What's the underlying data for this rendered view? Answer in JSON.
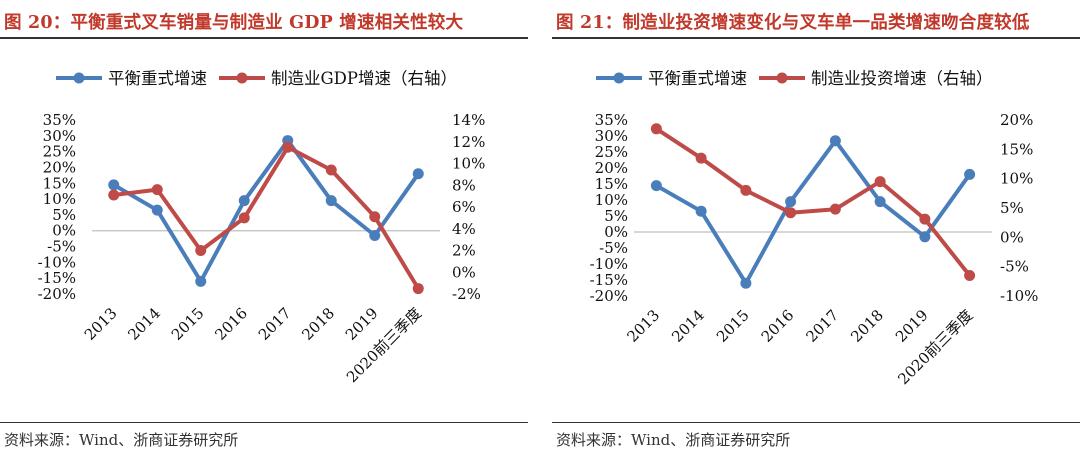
{
  "colors": {
    "blue": "#4a7ebb",
    "red": "#be4b48",
    "title_red": "#c0392b",
    "grid": "#bfbfbf"
  },
  "chart_data": [
    {
      "type": "line",
      "title": "图 20：平衡重式叉车销量与制造业 GDP 增速相关性较大",
      "source": "资料来源：Wind、浙商证券研究所",
      "categories": [
        "2013",
        "2014",
        "2015",
        "2016",
        "2017",
        "2018",
        "2019",
        "2020前三季度"
      ],
      "series": [
        {
          "name": "平衡重式增速",
          "axis": "left",
          "color": "#4a7ebb",
          "values": [
            14.5,
            6.5,
            -16,
            9.5,
            28.5,
            9.5,
            -1.5,
            18
          ]
        },
        {
          "name": "制造业GDP增速（右轴）",
          "axis": "right",
          "color": "#be4b48",
          "values": [
            7.1,
            7.6,
            2.0,
            5.0,
            11.5,
            9.4,
            5.1,
            -1.5
          ]
        }
      ],
      "ylim_left": [
        -20,
        35
      ],
      "ylim_right": [
        -2,
        14
      ],
      "yticks_left": [
        "35%",
        "30%",
        "25%",
        "20%",
        "15%",
        "10%",
        "5%",
        "0%",
        "-5%",
        "-10%",
        "-15%",
        "-20%"
      ],
      "yticks_right": [
        "14%",
        "12%",
        "10%",
        "8%",
        "6%",
        "4%",
        "2%",
        "0%",
        "-2%"
      ],
      "legend": "top"
    },
    {
      "type": "line",
      "title": "图 21：制造业投资增速变化与叉车单一品类增速吻合度较低",
      "source": "资料来源：Wind、浙商证券研究所",
      "categories": [
        "2013",
        "2014",
        "2015",
        "2016",
        "2017",
        "2018",
        "2019",
        "2020前三季度"
      ],
      "series": [
        {
          "name": "平衡重式增速",
          "axis": "left",
          "color": "#4a7ebb",
          "values": [
            14.5,
            6.5,
            -16,
            9.5,
            28.5,
            9.5,
            -1.5,
            18
          ]
        },
        {
          "name": "制造业投资增速（右轴）",
          "axis": "right",
          "color": "#be4b48",
          "values": [
            18.5,
            13.5,
            8.0,
            4.2,
            4.8,
            9.5,
            3.1,
            -6.5
          ]
        }
      ],
      "ylim_left": [
        -20,
        35
      ],
      "ylim_right": [
        -10,
        20
      ],
      "yticks_left": [
        "35%",
        "30%",
        "25%",
        "20%",
        "15%",
        "10%",
        "5%",
        "0%",
        "-5%",
        "-10%",
        "-15%",
        "-20%"
      ],
      "yticks_right": [
        "20%",
        "15%",
        "10%",
        "5%",
        "0%",
        "-5%",
        "-10%"
      ],
      "legend": "top"
    }
  ]
}
